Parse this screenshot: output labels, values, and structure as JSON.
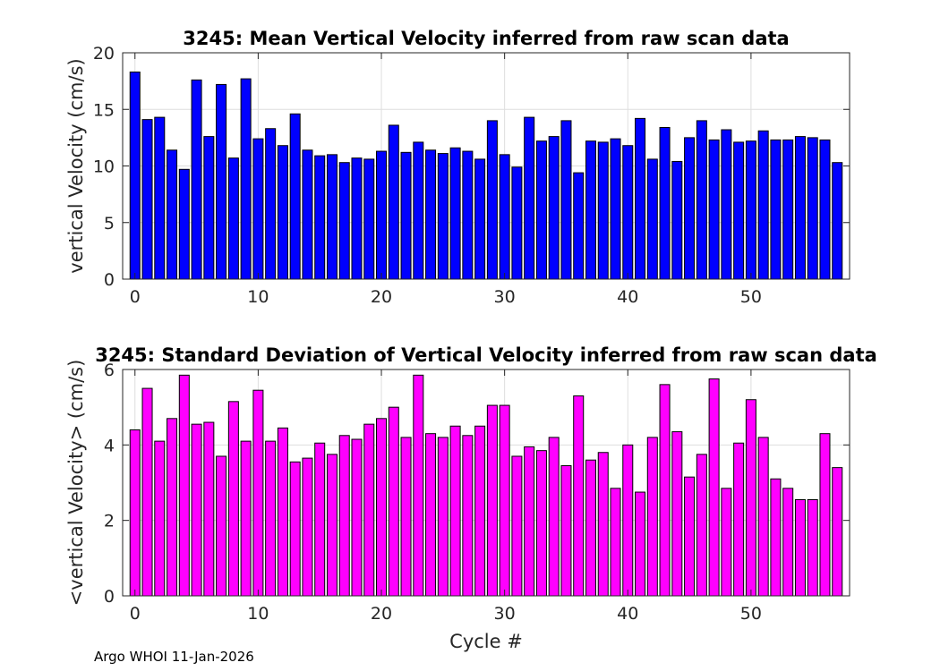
{
  "footer": "Argo WHOI 11-Jan-2026",
  "chart_data": [
    {
      "type": "bar",
      "title": "3245: Mean Vertical Velocity inferred from raw scan data",
      "xlabel": "",
      "ylabel": "vertical Velocity (cm/s)",
      "xlim": [
        -1,
        58
      ],
      "ylim": [
        0,
        20
      ],
      "xticks": [
        0,
        10,
        20,
        30,
        40,
        50
      ],
      "yticks": [
        0,
        5,
        10,
        15,
        20
      ],
      "grid": true,
      "color": "#0000ff",
      "x": [
        0,
        1,
        2,
        3,
        4,
        5,
        6,
        7,
        8,
        9,
        10,
        11,
        12,
        13,
        14,
        15,
        16,
        17,
        18,
        19,
        20,
        21,
        22,
        23,
        24,
        25,
        26,
        27,
        28,
        29,
        30,
        31,
        32,
        33,
        34,
        35,
        36,
        37,
        38,
        39,
        40,
        41,
        42,
        43,
        44,
        45,
        46,
        47,
        48,
        49,
        50,
        51,
        52,
        53,
        54,
        55,
        56,
        57
      ],
      "values": [
        18.3,
        14.1,
        14.3,
        11.4,
        9.7,
        17.6,
        12.6,
        17.2,
        10.7,
        17.7,
        12.4,
        13.3,
        11.8,
        14.6,
        11.4,
        10.9,
        11.0,
        10.3,
        10.7,
        10.6,
        11.3,
        13.6,
        11.2,
        12.1,
        11.4,
        11.1,
        11.6,
        11.3,
        10.6,
        14.0,
        11.0,
        9.9,
        14.3,
        12.2,
        12.6,
        14.0,
        9.4,
        12.2,
        12.1,
        12.4,
        11.8,
        14.2,
        10.6,
        13.4,
        10.4,
        12.5,
        14.0,
        12.3,
        13.2,
        12.1,
        12.2,
        13.1,
        12.3,
        12.3,
        12.6,
        12.5,
        12.3,
        10.3
      ]
    },
    {
      "type": "bar",
      "title": "3245: Standard Deviation of Vertical Velocity inferred from raw scan data",
      "xlabel": "Cycle #",
      "ylabel": "<vertical Velocity> (cm/s)",
      "xlim": [
        -1,
        58
      ],
      "ylim": [
        0,
        6
      ],
      "xticks": [
        0,
        10,
        20,
        30,
        40,
        50
      ],
      "yticks": [
        0,
        2,
        4,
        6
      ],
      "grid": true,
      "color": "#ff00ff",
      "x": [
        0,
        1,
        2,
        3,
        4,
        5,
        6,
        7,
        8,
        9,
        10,
        11,
        12,
        13,
        14,
        15,
        16,
        17,
        18,
        19,
        20,
        21,
        22,
        23,
        24,
        25,
        26,
        27,
        28,
        29,
        30,
        31,
        32,
        33,
        34,
        35,
        36,
        37,
        38,
        39,
        40,
        41,
        42,
        43,
        44,
        45,
        46,
        47,
        48,
        49,
        50,
        51,
        52,
        53,
        54,
        55,
        56,
        57
      ],
      "values": [
        4.4,
        5.5,
        4.1,
        4.7,
        5.85,
        4.55,
        4.6,
        3.7,
        5.15,
        4.1,
        5.45,
        4.1,
        4.45,
        3.55,
        3.65,
        4.05,
        3.75,
        4.25,
        4.15,
        4.55,
        4.7,
        5.0,
        4.2,
        5.85,
        4.3,
        4.2,
        4.5,
        4.25,
        4.5,
        5.05,
        5.05,
        3.7,
        3.95,
        3.85,
        4.2,
        3.45,
        5.3,
        3.6,
        3.8,
        2.85,
        4.0,
        2.75,
        4.2,
        5.6,
        4.35,
        3.15,
        3.75,
        5.75,
        2.85,
        4.05,
        5.2,
        4.2,
        3.1,
        2.85,
        2.55,
        2.55,
        4.3,
        3.4
      ]
    }
  ]
}
